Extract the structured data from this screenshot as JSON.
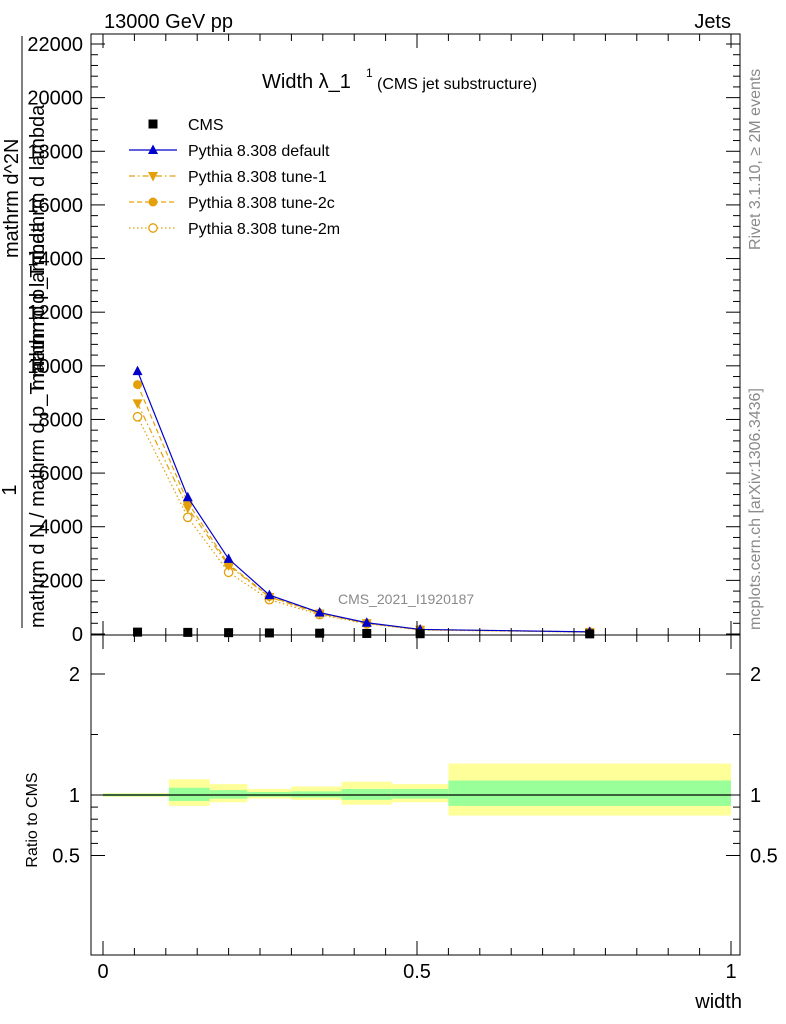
{
  "header": {
    "energy_label": "13000 GeV pp",
    "process_label": "Jets"
  },
  "side_labels": {
    "rivet": "Rivet 3.1.10, ≥ 2M events",
    "mcplots": "mcplots.cern.ch [arXiv:1306.3436]"
  },
  "colors": {
    "cms": "#000000",
    "default": "#0000cc",
    "tunes": "#e3a008",
    "band_inner": "#99ff99",
    "band_outer": "#ffff99"
  },
  "chart_data": [
    {
      "type": "line",
      "title": "Width λ_1",
      "title_superscript": "1",
      "subtitle": "(CMS jet substructure)",
      "watermark": "CMS_2021_I1920187",
      "ylabel_numerator": "1",
      "ylabel_denominator_lines": [
        "mathrm d N / mathrm d p_T mathrm d lambda",
        "mathrm d^2N",
        "mathrm d p_T mathrm d lambda"
      ],
      "xlim": [
        0,
        1
      ],
      "ylim": [
        0,
        22000
      ],
      "yticks": [
        0,
        2000,
        4000,
        6000,
        8000,
        10000,
        12000,
        14000,
        16000,
        18000,
        20000,
        22000
      ],
      "ytick_labels": [
        "0",
        "2000",
        "4000",
        "6000",
        "8000",
        "10000",
        "12000",
        "14000",
        "16000",
        "18000",
        "20000",
        "22000"
      ],
      "grid": false,
      "legend_position": "top-left",
      "x": [
        0.055,
        0.135,
        0.2,
        0.265,
        0.345,
        0.42,
        0.505,
        0.775
      ],
      "series": [
        {
          "name": "CMS",
          "marker": "square",
          "values": [
            70,
            60,
            50,
            40,
            30,
            20,
            10,
            5
          ]
        },
        {
          "name": "Pythia 8.308 default",
          "marker": "triangle-up",
          "line": "solid",
          "values": [
            9800,
            5100,
            2800,
            1450,
            800,
            420,
            170,
            80
          ]
        },
        {
          "name": "Pythia 8.308 tune-1",
          "marker": "triangle-down",
          "line": "dashdot",
          "values": [
            8600,
            4700,
            2550,
            1380,
            760,
            400,
            160,
            75
          ]
        },
        {
          "name": "Pythia 8.308 tune-2c",
          "marker": "circle",
          "line": "dashed",
          "values": [
            9300,
            4900,
            2600,
            1400,
            780,
            410,
            165,
            78
          ]
        },
        {
          "name": "Pythia 8.308 tune-2m",
          "marker": "open-circle",
          "line": "dotted",
          "values": [
            8100,
            4350,
            2300,
            1280,
            720,
            380,
            150,
            70
          ]
        }
      ]
    },
    {
      "type": "area",
      "ylabel": "Ratio to CMS",
      "xlabel": "width",
      "xlim": [
        0,
        1
      ],
      "xticks": [
        0,
        0.5,
        1
      ],
      "xtick_labels": [
        "0",
        "0.5",
        "1"
      ],
      "ylim": [
        0.4,
        2.3
      ],
      "ytick_labels": [
        "0.5",
        "1",
        "2"
      ],
      "yticks": [
        0.5,
        1,
        2
      ],
      "bin_edges": [
        0,
        0.105,
        0.17,
        0.23,
        0.3,
        0.38,
        0.46,
        0.55,
        1.0
      ],
      "inner_band": {
        "low": [
          0.99,
          0.95,
          0.97,
          0.985,
          0.98,
          0.96,
          0.97,
          0.91
        ],
        "high": [
          1.01,
          1.06,
          1.04,
          1.025,
          1.03,
          1.05,
          1.05,
          1.12
        ]
      },
      "outer_band": {
        "low": [
          0.985,
          0.91,
          0.94,
          0.97,
          0.96,
          0.92,
          0.94,
          0.83
        ],
        "high": [
          1.015,
          1.13,
          1.09,
          1.05,
          1.07,
          1.11,
          1.09,
          1.26
        ]
      },
      "reference_line": 1
    }
  ]
}
